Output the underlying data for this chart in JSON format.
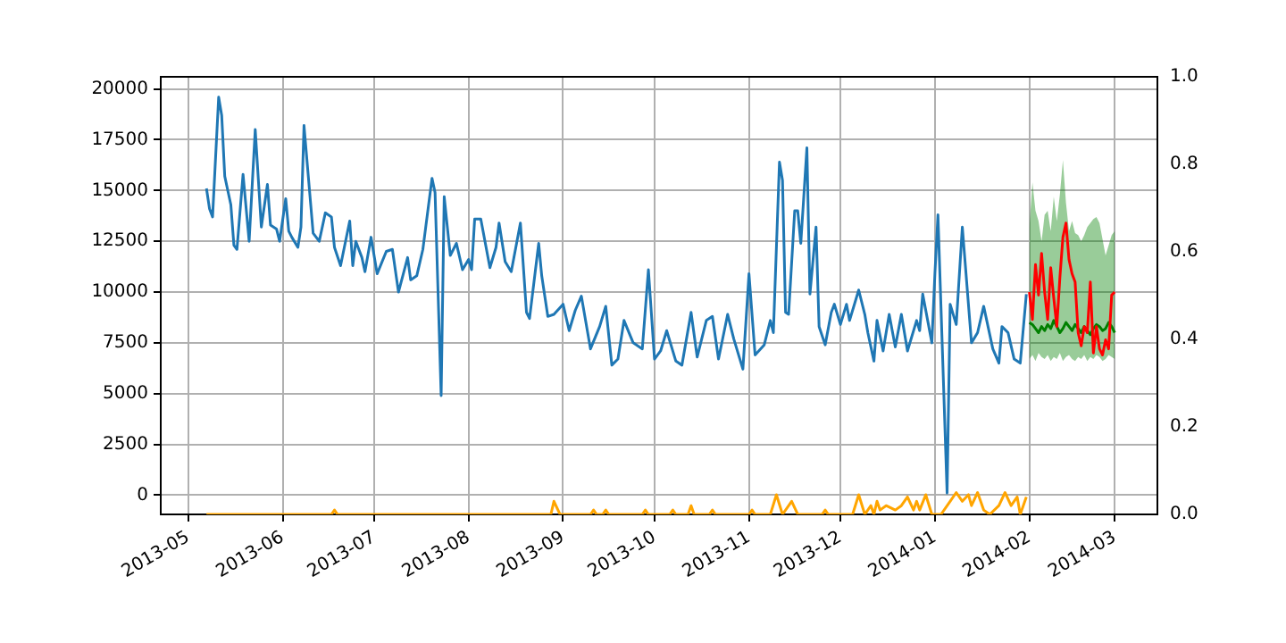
{
  "chart_data": {
    "type": "line",
    "xlim": [
      "2013-04-22",
      "2014-03-15"
    ],
    "xticks": [
      "2013-05",
      "2013-06",
      "2013-07",
      "2013-08",
      "2013-09",
      "2013-10",
      "2013-11",
      "2013-12",
      "2014-01",
      "2014-02",
      "2014-03"
    ],
    "ylim": [
      -950,
      20600
    ],
    "yticks": [
      0,
      2500,
      5000,
      7500,
      10000,
      12500,
      15000,
      17500,
      20000
    ],
    "y2lim": [
      0,
      1
    ],
    "y2ticks": [
      {
        "value": 0,
        "label": "0.0"
      },
      0.2,
      0.4,
      0.6,
      0.8,
      {
        "value": 1,
        "label": "1.0"
      }
    ],
    "grid": true,
    "legend": false,
    "marker": "none",
    "line_style": "solid",
    "series": [
      {
        "color": "#1f77b4",
        "x": [
          "2013-05-07",
          "2013-05-08",
          "2013-05-09",
          "2013-05-11",
          "2013-05-12",
          "2013-05-13",
          "2013-05-15",
          "2013-05-16",
          "2013-05-17",
          "2013-05-19",
          "2013-05-21",
          "2013-05-23",
          "2013-05-25",
          "2013-05-27",
          "2013-05-28",
          "2013-05-30",
          "2013-05-31",
          "2013-06-02",
          "2013-06-03",
          "2013-06-04",
          "2013-06-06",
          "2013-06-07",
          "2013-06-08",
          "2013-06-11",
          "2013-06-13",
          "2013-06-15",
          "2013-06-17",
          "2013-06-18",
          "2013-06-20",
          "2013-06-23",
          "2013-06-24",
          "2013-06-25",
          "2013-06-27",
          "2013-06-28",
          "2013-06-30",
          "2013-07-02",
          "2013-07-05",
          "2013-07-07",
          "2013-07-09",
          "2013-07-12",
          "2013-07-13",
          "2013-07-15",
          "2013-07-17",
          "2013-07-20",
          "2013-07-21",
          "2013-07-23",
          "2013-07-24",
          "2013-07-26",
          "2013-07-28",
          "2013-07-30",
          "2013-08-01",
          "2013-08-02",
          "2013-08-03",
          "2013-08-05",
          "2013-08-08",
          "2013-08-10",
          "2013-08-11",
          "2013-08-13",
          "2013-08-15",
          "2013-08-18",
          "2013-08-20",
          "2013-08-21",
          "2013-08-24",
          "2013-08-25",
          "2013-08-27",
          "2013-08-29",
          "2013-09-01",
          "2013-09-03",
          "2013-09-05",
          "2013-09-07",
          "2013-09-10",
          "2013-09-13",
          "2013-09-15",
          "2013-09-17",
          "2013-09-19",
          "2013-09-21",
          "2013-09-24",
          "2013-09-27",
          "2013-09-29",
          "2013-10-01",
          "2013-10-03",
          "2013-10-05",
          "2013-10-08",
          "2013-10-10",
          "2013-10-13",
          "2013-10-15",
          "2013-10-18",
          "2013-10-20",
          "2013-10-22",
          "2013-10-25",
          "2013-10-27",
          "2013-10-30",
          "2013-11-01",
          "2013-11-03",
          "2013-11-06",
          "2013-11-08",
          "2013-11-09",
          "2013-11-11",
          "2013-11-12",
          "2013-11-13",
          "2013-11-14",
          "2013-11-16",
          "2013-11-17",
          "2013-11-18",
          "2013-11-20",
          "2013-11-21",
          "2013-11-23",
          "2013-11-24",
          "2013-11-26",
          "2013-11-28",
          "2013-11-29",
          "2013-12-01",
          "2013-12-03",
          "2013-12-04",
          "2013-12-07",
          "2013-12-09",
          "2013-12-10",
          "2013-12-12",
          "2013-12-13",
          "2013-12-15",
          "2013-12-17",
          "2013-12-19",
          "2013-12-21",
          "2013-12-23",
          "2013-12-26",
          "2013-12-27",
          "2013-12-28",
          "2013-12-31",
          "2014-01-01",
          "2014-01-02",
          "2014-01-05",
          "2014-01-06",
          "2014-01-08",
          "2014-01-10",
          "2014-01-13",
          "2014-01-15",
          "2014-01-17",
          "2014-01-20",
          "2014-01-22",
          "2014-01-23",
          "2014-01-25",
          "2014-01-27",
          "2014-01-29",
          "2014-01-31"
        ],
        "values": [
          15100,
          14100,
          13700,
          19600,
          18700,
          15700,
          14300,
          12300,
          12100,
          15800,
          12500,
          18000,
          13200,
          15300,
          13300,
          13100,
          12500,
          14600,
          13000,
          12700,
          12200,
          13200,
          18200,
          12900,
          12500,
          13900,
          13700,
          12200,
          11300,
          13500,
          11300,
          12500,
          11700,
          11000,
          12700,
          10900,
          12000,
          12100,
          10000,
          11700,
          10600,
          10800,
          12100,
          15600,
          14900,
          4900,
          14700,
          11800,
          12400,
          11100,
          11600,
          11100,
          13600,
          13600,
          11200,
          12200,
          13400,
          11500,
          11000,
          13400,
          9000,
          8700,
          12400,
          10800,
          8800,
          8900,
          9400,
          8100,
          9100,
          9800,
          7200,
          8300,
          9300,
          6400,
          6700,
          8600,
          7500,
          7200,
          11100,
          6700,
          7100,
          8100,
          6600,
          6400,
          9000,
          6800,
          8600,
          8800,
          6700,
          8900,
          7700,
          6200,
          10900,
          6900,
          7400,
          8600,
          8000,
          16400,
          15500,
          9000,
          8900,
          14000,
          14000,
          12400,
          17100,
          9900,
          13200,
          8300,
          7400,
          9000,
          9400,
          8400,
          9400,
          8600,
          10100,
          8900,
          8000,
          6600,
          8600,
          7100,
          8900,
          7300,
          8900,
          7100,
          8600,
          8100,
          9900,
          7500,
          10900,
          13800,
          100,
          9400,
          8400,
          13200,
          7500,
          8000,
          9300,
          7200,
          6500,
          8300,
          8000,
          6700,
          6500,
          9900
        ]
      },
      {
        "color": "#ffa500",
        "axis": "y2",
        "x": [
          "2013-05-07",
          "2013-06-17",
          "2013-06-18",
          "2013-06-19",
          "2013-08-28",
          "2013-08-29",
          "2013-08-31",
          "2013-09-10",
          "2013-09-11",
          "2013-09-12",
          "2013-09-14",
          "2013-09-15",
          "2013-09-16",
          "2013-09-27",
          "2013-09-28",
          "2013-09-29",
          "2013-10-06",
          "2013-10-07",
          "2013-10-08",
          "2013-10-12",
          "2013-10-13",
          "2013-10-14",
          "2013-10-19",
          "2013-10-20",
          "2013-10-21",
          "2013-11-01",
          "2013-11-02",
          "2013-11-03",
          "2013-11-08",
          "2013-11-10",
          "2013-11-12",
          "2013-11-15",
          "2013-11-17",
          "2013-11-19",
          "2013-11-25",
          "2013-11-26",
          "2013-11-27",
          "2013-12-05",
          "2013-12-07",
          "2013-12-09",
          "2013-12-11",
          "2013-12-12",
          "2013-12-13",
          "2013-12-14",
          "2013-12-16",
          "2013-12-19",
          "2013-12-21",
          "2013-12-23",
          "2013-12-25",
          "2013-12-26",
          "2013-12-27",
          "2013-12-29",
          "2013-12-31",
          "2014-01-03",
          "2014-01-06",
          "2014-01-08",
          "2014-01-10",
          "2014-01-12",
          "2014-01-13",
          "2014-01-15",
          "2014-01-17",
          "2014-01-19",
          "2014-01-22",
          "2014-01-24",
          "2014-01-26",
          "2014-01-28",
          "2014-01-29",
          "2014-01-31"
        ],
        "values": [
          0,
          0,
          0.01,
          0,
          0,
          0.03,
          0,
          0,
          0.01,
          0,
          0,
          0.01,
          0,
          0,
          0.01,
          0,
          0,
          0.01,
          0,
          0,
          0.02,
          0,
          0,
          0.01,
          0,
          0,
          0.01,
          0,
          0,
          0.045,
          0,
          0.03,
          0,
          0,
          0,
          0.01,
          0,
          0,
          0.045,
          0,
          0.02,
          0,
          0.03,
          0.01,
          0.02,
          0.01,
          0.02,
          0.04,
          0.01,
          0.03,
          0.01,
          0.045,
          0,
          0,
          0.03,
          0.05,
          0.03,
          0.045,
          0.02,
          0.05,
          0.01,
          0,
          0.02,
          0.05,
          0.02,
          0.04,
          0,
          0.04
        ]
      },
      {
        "color": "#ff0000",
        "x": [
          "2014-02-01",
          "2014-02-02",
          "2014-02-03",
          "2014-02-04",
          "2014-02-05",
          "2014-02-06",
          "2014-02-07",
          "2014-02-08",
          "2014-02-09",
          "2014-02-10",
          "2014-02-11",
          "2014-02-12",
          "2014-02-13",
          "2014-02-14",
          "2014-02-15",
          "2014-02-16",
          "2014-02-17",
          "2014-02-18",
          "2014-02-19",
          "2014-02-20",
          "2014-02-21",
          "2014-02-22",
          "2014-02-23",
          "2014-02-24",
          "2014-02-25",
          "2014-02-26",
          "2014-02-27",
          "2014-02-28",
          "2014-03-01"
        ],
        "values": [
          10000,
          8650,
          11350,
          9850,
          11900,
          10000,
          8650,
          11200,
          9700,
          8300,
          10700,
          12700,
          13400,
          11600,
          10900,
          10500,
          8000,
          7350,
          8300,
          8000,
          10500,
          7000,
          8300,
          7200,
          6900,
          7650,
          7200,
          9850,
          10000
        ]
      },
      {
        "color": "#008000",
        "x": [
          "2014-02-01",
          "2014-02-02",
          "2014-02-03",
          "2014-02-04",
          "2014-02-05",
          "2014-02-06",
          "2014-02-07",
          "2014-02-08",
          "2014-02-09",
          "2014-02-10",
          "2014-02-11",
          "2014-02-12",
          "2014-02-13",
          "2014-02-14",
          "2014-02-15",
          "2014-02-16",
          "2014-02-17",
          "2014-02-18",
          "2014-02-19",
          "2014-02-20",
          "2014-02-21",
          "2014-02-22",
          "2014-02-23",
          "2014-02-24",
          "2014-02-25",
          "2014-02-26",
          "2014-02-27",
          "2014-02-28",
          "2014-03-01"
        ],
        "values": [
          8500,
          8400,
          8200,
          8000,
          8300,
          8100,
          8400,
          8200,
          8600,
          8300,
          8000,
          8200,
          8500,
          8300,
          8100,
          8400,
          8200,
          8000,
          8300,
          8100,
          7900,
          8200,
          8400,
          8300,
          8100,
          8200,
          8500,
          8300,
          8000
        ],
        "lower": [
          6700,
          6900,
          6600,
          7000,
          6800,
          6700,
          6900,
          6600,
          6800,
          6700,
          7000,
          6600,
          6800,
          6900,
          6700,
          6600,
          6800,
          6700,
          6900,
          6600,
          6800,
          6700,
          6900,
          6800,
          6600,
          6700,
          6900,
          6800,
          6700
        ],
        "upper": [
          13200,
          15400,
          14000,
          13500,
          12500,
          13800,
          14000,
          13000,
          14700,
          13500,
          14800,
          16500,
          14400,
          13000,
          13500,
          12900,
          12800,
          12500,
          12800,
          13200,
          13400,
          13600,
          13700,
          13400,
          12600,
          11800,
          12300,
          12800,
          13000
        ]
      }
    ]
  }
}
